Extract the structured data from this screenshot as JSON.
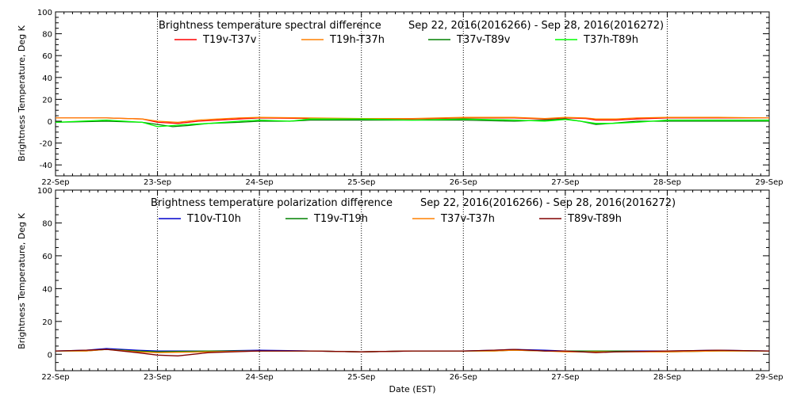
{
  "chart_data": [
    {
      "type": "line",
      "title": "Brightness temperature spectral difference",
      "date_range": "Sep 22, 2016(2016266) - Sep 28, 2016(2016272)",
      "ylabel": "Brightness Temperature, Deg K",
      "xlabel": "",
      "ylim": [
        -50,
        100
      ],
      "yticks": [
        "-40",
        "-20",
        "0",
        "20",
        "40",
        "60",
        "80",
        "100"
      ],
      "xlim": [
        0,
        7
      ],
      "xticks": [
        "22-Sep",
        "23-Sep",
        "24-Sep",
        "25-Sep",
        "26-Sep",
        "27-Sep",
        "28-Sep",
        "29-Sep"
      ],
      "x_unit": "days after 22-Sep 00:00 EST",
      "grid": "vertical dotted at day boundaries",
      "legend_placement": "top",
      "series": [
        {
          "name": "T19v-T37v",
          "color": "#ff0000",
          "points": [
            [
              0,
              3
            ],
            [
              0.5,
              3
            ],
            [
              0.85,
              2
            ],
            [
              1.0,
              -1
            ],
            [
              1.2,
              -2
            ],
            [
              1.4,
              0
            ],
            [
              1.6,
              1
            ],
            [
              1.8,
              2
            ],
            [
              2.0,
              3
            ],
            [
              2.5,
              2.5
            ],
            [
              3.0,
              2
            ],
            [
              3.5,
              2
            ],
            [
              4.0,
              3
            ],
            [
              4.5,
              3
            ],
            [
              4.8,
              2
            ],
            [
              5.0,
              3
            ],
            [
              5.2,
              2.5
            ],
            [
              5.3,
              1
            ],
            [
              5.5,
              1
            ],
            [
              5.7,
              2
            ],
            [
              6.0,
              3
            ],
            [
              6.5,
              3
            ],
            [
              7.0,
              3
            ]
          ]
        },
        {
          "name": "T19h-T37h",
          "color": "#ff8000",
          "points": [
            [
              0,
              3
            ],
            [
              0.5,
              3
            ],
            [
              0.85,
              2
            ],
            [
              1.0,
              0
            ],
            [
              1.2,
              -1
            ],
            [
              1.4,
              1
            ],
            [
              1.6,
              2
            ],
            [
              1.8,
              3
            ],
            [
              2.0,
              3.5
            ],
            [
              2.5,
              3
            ],
            [
              3.0,
              2.5
            ],
            [
              3.5,
              2.5
            ],
            [
              4.0,
              3.5
            ],
            [
              4.5,
              3.5
            ],
            [
              4.8,
              2.5
            ],
            [
              5.0,
              3.5
            ],
            [
              5.2,
              3
            ],
            [
              5.3,
              2
            ],
            [
              5.5,
              2
            ],
            [
              5.7,
              3
            ],
            [
              6.0,
              3.5
            ],
            [
              6.5,
              3.5
            ],
            [
              7.0,
              3
            ]
          ]
        },
        {
          "name": "T37v-T89v",
          "color": "#008000",
          "points": [
            [
              0,
              -1
            ],
            [
              0.5,
              0
            ],
            [
              0.85,
              -1
            ],
            [
              1.0,
              -3
            ],
            [
              1.15,
              -5
            ],
            [
              1.3,
              -4
            ],
            [
              1.5,
              -2
            ],
            [
              1.8,
              -1
            ],
            [
              2.0,
              0
            ],
            [
              2.3,
              0
            ],
            [
              2.5,
              1
            ],
            [
              3.0,
              1
            ],
            [
              3.5,
              1
            ],
            [
              4.0,
              1
            ],
            [
              4.5,
              0
            ],
            [
              4.8,
              1
            ],
            [
              5.0,
              2
            ],
            [
              5.15,
              0
            ],
            [
              5.3,
              -3
            ],
            [
              5.45,
              -2
            ],
            [
              5.7,
              0
            ],
            [
              6.0,
              0
            ],
            [
              6.5,
              0
            ],
            [
              7.0,
              0
            ]
          ]
        },
        {
          "name": "T37h-T89h",
          "color": "#00ff00",
          "points": [
            [
              0,
              -1
            ],
            [
              0.5,
              1
            ],
            [
              0.85,
              -1
            ],
            [
              1.0,
              -5
            ],
            [
              1.15,
              -4
            ],
            [
              1.3,
              -3
            ],
            [
              1.5,
              -2
            ],
            [
              1.8,
              0
            ],
            [
              2.0,
              1
            ],
            [
              2.3,
              0
            ],
            [
              2.5,
              2
            ],
            [
              3.0,
              2
            ],
            [
              3.5,
              1
            ],
            [
              4.0,
              2
            ],
            [
              4.5,
              1
            ],
            [
              4.8,
              0
            ],
            [
              5.0,
              1.5
            ],
            [
              5.15,
              0
            ],
            [
              5.3,
              -2
            ],
            [
              5.45,
              -2
            ],
            [
              5.7,
              -1
            ],
            [
              6.0,
              1
            ],
            [
              6.5,
              1
            ],
            [
              7.0,
              1
            ]
          ]
        }
      ]
    },
    {
      "type": "line",
      "title": "Brightness temperature polarization difference",
      "date_range": "Sep 22, 2016(2016266) - Sep 28, 2016(2016272)",
      "ylabel": "Brightness Temperature, Deg K",
      "xlabel": "Date (EST)",
      "ylim": [
        -10,
        100
      ],
      "yticks": [
        "0",
        "20",
        "40",
        "60",
        "80",
        "100"
      ],
      "xlim": [
        0,
        7
      ],
      "xticks": [
        "22-Sep",
        "23-Sep",
        "24-Sep",
        "25-Sep",
        "26-Sep",
        "27-Sep",
        "28-Sep",
        "29-Sep"
      ],
      "x_unit": "days after 22-Sep 00:00 EST",
      "grid": "vertical dotted at day boundaries",
      "legend_placement": "top",
      "series": [
        {
          "name": "T10v-T10h",
          "color": "#0000cc",
          "points": [
            [
              0,
              2
            ],
            [
              0.3,
              2.5
            ],
            [
              0.5,
              3.5
            ],
            [
              0.8,
              2.5
            ],
            [
              1.0,
              2
            ],
            [
              1.5,
              2
            ],
            [
              2.0,
              2.5
            ],
            [
              2.5,
              2
            ],
            [
              3.0,
              1.5
            ],
            [
              3.5,
              2
            ],
            [
              4.0,
              2
            ],
            [
              4.3,
              2.5
            ],
            [
              4.5,
              3
            ],
            [
              4.8,
              2.5
            ],
            [
              5.0,
              2
            ],
            [
              5.5,
              2
            ],
            [
              6.0,
              2
            ],
            [
              6.5,
              2.5
            ],
            [
              7.0,
              2
            ]
          ]
        },
        {
          "name": "T19v-T19h",
          "color": "#008000",
          "points": [
            [
              0,
              2
            ],
            [
              0.3,
              2
            ],
            [
              0.5,
              3
            ],
            [
              0.8,
              2
            ],
            [
              1.0,
              1.5
            ],
            [
              1.5,
              2
            ],
            [
              2.0,
              2
            ],
            [
              2.5,
              2
            ],
            [
              3.0,
              1.5
            ],
            [
              3.5,
              2
            ],
            [
              4.0,
              2
            ],
            [
              4.3,
              2
            ],
            [
              4.5,
              2.5
            ],
            [
              4.8,
              2
            ],
            [
              5.0,
              2
            ],
            [
              5.5,
              2
            ],
            [
              6.0,
              1.5
            ],
            [
              6.5,
              2
            ],
            [
              7.0,
              2
            ]
          ]
        },
        {
          "name": "T37v-T37h",
          "color": "#ff8000",
          "points": [
            [
              0,
              2
            ],
            [
              0.3,
              2
            ],
            [
              0.5,
              3
            ],
            [
              0.8,
              1.5
            ],
            [
              1.0,
              1
            ],
            [
              1.5,
              1.5
            ],
            [
              2.0,
              2
            ],
            [
              2.5,
              2
            ],
            [
              3.0,
              1.5
            ],
            [
              3.5,
              2
            ],
            [
              4.0,
              2
            ],
            [
              4.3,
              2
            ],
            [
              4.5,
              2.5
            ],
            [
              4.8,
              2
            ],
            [
              5.0,
              1.5
            ],
            [
              5.5,
              1.5
            ],
            [
              6.0,
              1.5
            ],
            [
              6.5,
              2
            ],
            [
              7.0,
              2
            ]
          ]
        },
        {
          "name": "T89v-T89h",
          "color": "#800000",
          "points": [
            [
              0,
              2
            ],
            [
              0.3,
              2.5
            ],
            [
              0.5,
              3
            ],
            [
              0.8,
              1
            ],
            [
              1.0,
              -0.5
            ],
            [
              1.2,
              -1
            ],
            [
              1.5,
              1
            ],
            [
              2.0,
              2
            ],
            [
              2.5,
              2
            ],
            [
              3.0,
              1.5
            ],
            [
              3.5,
              2
            ],
            [
              4.0,
              2
            ],
            [
              4.3,
              2.5
            ],
            [
              4.5,
              3
            ],
            [
              4.8,
              2
            ],
            [
              5.0,
              2
            ],
            [
              5.3,
              1
            ],
            [
              5.5,
              1.5
            ],
            [
              6.0,
              2
            ],
            [
              6.5,
              2.5
            ],
            [
              7.0,
              2
            ]
          ]
        }
      ]
    }
  ]
}
